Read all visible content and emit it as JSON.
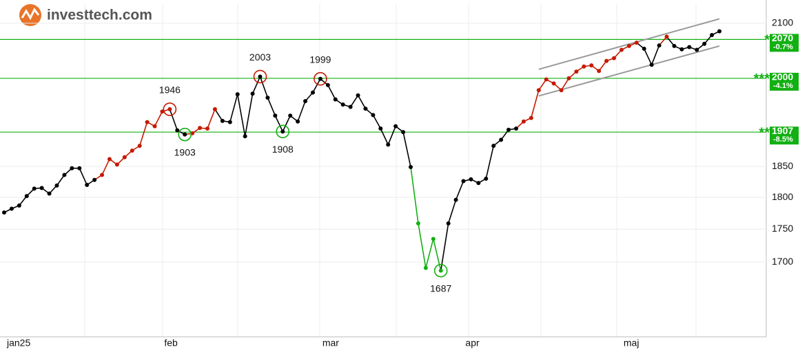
{
  "header": {
    "logo": "investtech.com"
  },
  "chart_data": {
    "type": "line",
    "categories": [
      "jan25",
      null,
      null,
      null,
      null,
      null,
      null,
      null,
      null,
      null,
      null,
      null,
      null,
      null,
      null,
      null,
      null,
      null,
      null,
      null,
      null,
      null,
      "feb",
      null,
      null,
      null,
      null,
      null,
      null,
      null,
      null,
      null,
      null,
      null,
      null,
      null,
      null,
      null,
      null,
      null,
      null,
      null,
      null,
      "mar",
      null,
      null,
      null,
      null,
      null,
      null,
      null,
      null,
      null,
      null,
      null,
      null,
      null,
      null,
      null,
      null,
      null,
      null,
      "apr",
      null,
      null,
      null,
      null,
      null,
      null,
      null,
      null,
      null,
      null,
      null,
      null,
      null,
      null,
      null,
      null,
      null,
      null,
      null,
      null,
      "maj",
      null,
      null,
      null,
      null,
      null,
      null,
      null,
      null,
      null,
      null,
      null,
      null
    ],
    "values": [
      1776,
      1782,
      1787,
      1802,
      1814,
      1815,
      1806,
      1819,
      1836,
      1847,
      1847,
      1820,
      1828,
      1836,
      1862,
      1853,
      1865,
      1876,
      1884,
      1924,
      1917,
      1942,
      1946,
      1910,
      1903,
      1905,
      1914,
      1913,
      1946,
      1926,
      1924,
      1972,
      1900,
      1973,
      2003,
      1966,
      1935,
      1908,
      1935,
      1925,
      1960,
      1975,
      1999,
      1988,
      1963,
      1954,
      1950,
      1970,
      1947,
      1936,
      1913,
      1886,
      1917,
      1907,
      1849,
      1759,
      1691,
      1735,
      1687,
      1759,
      1796,
      1826,
      1829,
      1823,
      1830,
      1884,
      1894,
      1911,
      1913,
      1925,
      1931,
      1979,
      1998,
      1991,
      1979,
      2000,
      2012,
      2021,
      2023,
      2013,
      2031,
      2036,
      2051,
      2058,
      2064,
      2053,
      2024,
      2059,
      2075,
      2058,
      2052,
      2056,
      2051,
      2062,
      2078,
      2085
    ],
    "point_colors": [
      "#000",
      "#000",
      "#000",
      "#000",
      "#000",
      "#000",
      "#000",
      "#000",
      "#000",
      "#000",
      "#000",
      "#000",
      "#000",
      "#c41a00",
      "#c41a00",
      "#c41a00",
      "#c41a00",
      "#c41a00",
      "#c41a00",
      "#c41a00",
      "#c41a00",
      "#c41a00",
      "#c41a00",
      "#000",
      "#000",
      "#c41a00",
      "#c41a00",
      "#c41a00",
      "#c41a00",
      "#000",
      "#000",
      "#000",
      "#000",
      "#000",
      "#000",
      "#000",
      "#000",
      "#000",
      "#000",
      "#000",
      "#000",
      "#000",
      "#000",
      "#000",
      "#000",
      "#000",
      "#000",
      "#000",
      "#000",
      "#000",
      "#000",
      "#000",
      "#000",
      "#000",
      "#000",
      "#12b012",
      "#12b012",
      "#12b012",
      "#12b012",
      "#000",
      "#000",
      "#000",
      "#000",
      "#000",
      "#000",
      "#000",
      "#000",
      "#000",
      "#000",
      "#c41a00",
      "#c41a00",
      "#c41a00",
      "#c41a00",
      "#c41a00",
      "#c41a00",
      "#c41a00",
      "#c41a00",
      "#c41a00",
      "#c41a00",
      "#c41a00",
      "#c41a00",
      "#c41a00",
      "#c41a00",
      "#c41a00",
      "#c41a00",
      "#000",
      "#000",
      "#000",
      "#c41a00",
      "#000",
      "#000",
      "#000",
      "#000",
      "#000",
      "#000",
      "#000"
    ],
    "peaks": [
      22,
      34,
      42
    ],
    "peak_color": "#c41a00",
    "troughs": [
      24,
      37,
      58
    ],
    "trough_color": "#12b012",
    "levels": [
      {
        "value": 2070,
        "stars": "*",
        "pct": "-0.7%"
      },
      {
        "value": 2000,
        "stars": "***",
        "pct": "-4.1%"
      },
      {
        "value": 1907,
        "stars": "**",
        "pct": "-8.5%"
      }
    ],
    "level_color": "#12b012",
    "channel": {
      "start": 71,
      "end": 95,
      "upper": [
        2016,
        2108
      ],
      "lower": [
        1969,
        2058
      ],
      "color": "#999999"
    },
    "log_scale": true,
    "ylim": [
      1591,
      2137
    ],
    "yticks": [
      1700,
      1750,
      1800,
      1850,
      2100
    ]
  }
}
